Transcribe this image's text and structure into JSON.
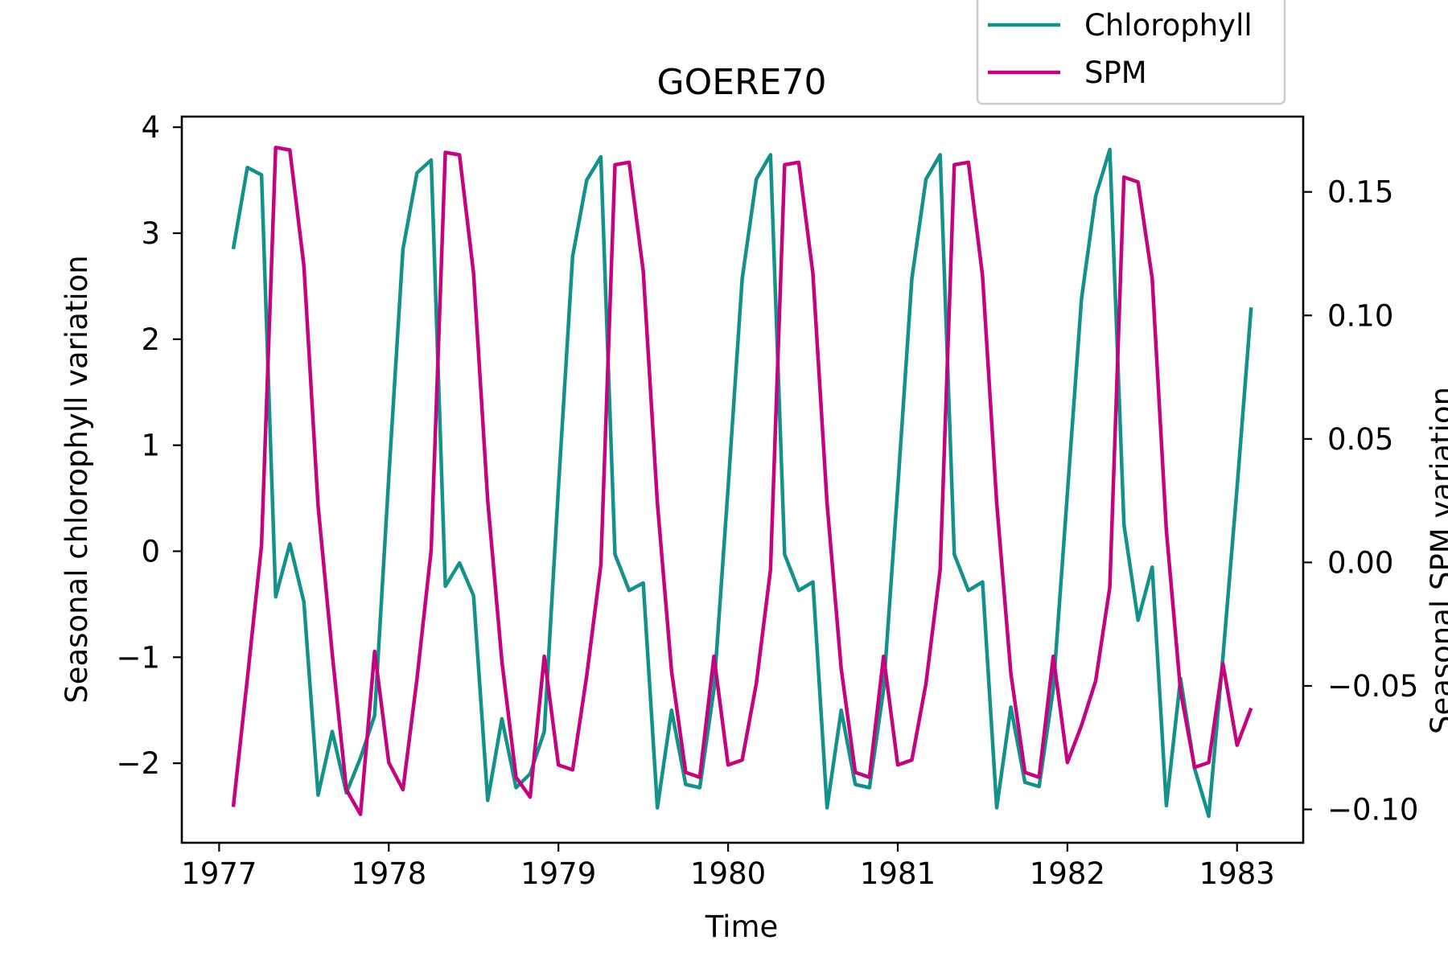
{
  "chart_data": {
    "type": "line",
    "title": "GOERE70",
    "xlabel": "Time",
    "ylabel_left": "Seasonal chlorophyll variation",
    "ylabel_right": "Seasonal SPM variation",
    "x_ticks": [
      "1977",
      "1978",
      "1979",
      "1980",
      "1981",
      "1982",
      "1983"
    ],
    "y_left_ticks": [
      "−2",
      "−1",
      "0",
      "1",
      "2",
      "3",
      "4"
    ],
    "y_right_ticks": [
      "−0.10",
      "−0.05",
      "0.00",
      "0.05",
      "0.10",
      "0.15"
    ],
    "xlim": [
      1976.78,
      1983.39
    ],
    "ylim_left": [
      -2.75,
      4.1
    ],
    "ylim_right": [
      -0.1135,
      0.1805
    ],
    "grid": false,
    "legend_position": "top-right",
    "x": [
      "1977-02",
      "1977-03",
      "1977-04",
      "1977-05",
      "1977-06",
      "1977-07",
      "1977-08",
      "1977-09",
      "1977-10",
      "1977-11",
      "1977-12",
      "1978-01",
      "1978-02",
      "1978-03",
      "1978-04",
      "1978-05",
      "1978-06",
      "1978-07",
      "1978-08",
      "1978-09",
      "1978-10",
      "1978-11",
      "1978-12",
      "1979-01",
      "1979-02",
      "1979-03",
      "1979-04",
      "1979-05",
      "1979-06",
      "1979-07",
      "1979-08",
      "1979-09",
      "1979-10",
      "1979-11",
      "1979-12",
      "1980-01",
      "1980-02",
      "1980-03",
      "1980-04",
      "1980-05",
      "1980-06",
      "1980-07",
      "1980-08",
      "1980-09",
      "1980-10",
      "1980-11",
      "1980-12",
      "1981-01",
      "1981-02",
      "1981-03",
      "1981-04",
      "1981-05",
      "1981-06",
      "1981-07",
      "1981-08",
      "1981-09",
      "1981-10",
      "1981-11",
      "1981-12",
      "1982-01",
      "1982-02",
      "1982-03",
      "1982-04",
      "1982-05",
      "1982-06",
      "1982-07",
      "1982-08",
      "1982-09",
      "1982-10",
      "1982-11",
      "1982-12",
      "1983-01",
      "1983-02"
    ],
    "series": [
      {
        "name": "Chlorophyll",
        "axis": "left",
        "color": "#13918a",
        "values": [
          2.85,
          3.62,
          3.55,
          -0.43,
          0.07,
          -0.48,
          -2.3,
          -1.7,
          -2.28,
          -1.95,
          -1.55,
          0.7,
          2.85,
          3.57,
          3.69,
          -0.33,
          -0.11,
          -0.42,
          -2.35,
          -1.58,
          -2.23,
          -2.1,
          -1.7,
          0.6,
          2.78,
          3.5,
          3.72,
          -0.03,
          -0.37,
          -0.3,
          -2.42,
          -1.5,
          -2.2,
          -2.23,
          -1.3,
          0.6,
          2.57,
          3.51,
          3.74,
          -0.03,
          -0.37,
          -0.29,
          -2.42,
          -1.5,
          -2.2,
          -2.23,
          -1.3,
          0.6,
          2.57,
          3.51,
          3.74,
          -0.03,
          -0.37,
          -0.29,
          -2.42,
          -1.47,
          -2.18,
          -2.22,
          -1.3,
          0.55,
          2.38,
          3.35,
          3.79,
          0.25,
          -0.65,
          -0.15,
          -2.4,
          -1.2,
          -2.05,
          -2.5,
          -1.0,
          0.6,
          2.3
        ]
      },
      {
        "name": "SPM",
        "axis": "right",
        "color": "#c4037f",
        "values": [
          -0.099,
          -0.047,
          0.007,
          0.168,
          0.167,
          0.12,
          0.023,
          -0.037,
          -0.092,
          -0.102,
          -0.036,
          -0.081,
          -0.092,
          -0.047,
          0.005,
          0.166,
          0.165,
          0.117,
          0.025,
          -0.04,
          -0.087,
          -0.095,
          -0.038,
          -0.082,
          -0.084,
          -0.046,
          -0.001,
          0.161,
          0.162,
          0.118,
          0.024,
          -0.044,
          -0.085,
          -0.087,
          -0.038,
          -0.082,
          -0.08,
          -0.049,
          -0.003,
          0.161,
          0.162,
          0.117,
          0.024,
          -0.043,
          -0.085,
          -0.087,
          -0.038,
          -0.082,
          -0.08,
          -0.049,
          -0.003,
          0.161,
          0.162,
          0.116,
          0.024,
          -0.045,
          -0.085,
          -0.087,
          -0.038,
          -0.081,
          -0.066,
          -0.048,
          -0.01,
          0.156,
          0.154,
          0.115,
          0.013,
          -0.052,
          -0.083,
          -0.081,
          -0.041,
          -0.074,
          -0.059
        ]
      }
    ]
  }
}
